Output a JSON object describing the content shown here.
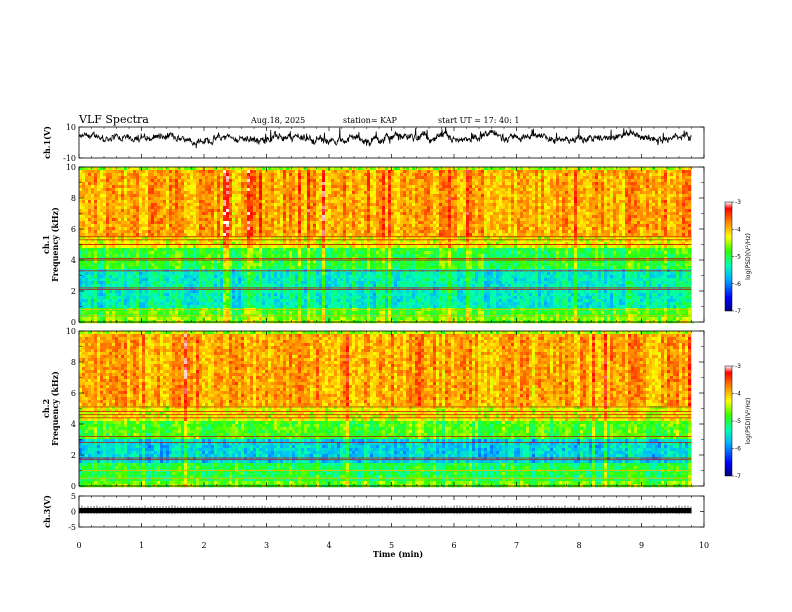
{
  "header": {
    "title": "VLF Spectra",
    "date": "Aug.18, 2025",
    "station": "station= KAP",
    "start": "start  UT  =   17: 40: 1"
  },
  "chart_data": [
    {
      "type": "line",
      "id": "ch1-waveform",
      "ylabel": "ch.1(V)",
      "ylim": [
        -10,
        10
      ],
      "ytick_labels": [
        "10",
        "-10"
      ],
      "xlim": [
        0,
        10
      ],
      "data_extent_min": 9.8,
      "mean": 3,
      "amplitude": 3
    },
    {
      "type": "heatmap",
      "id": "ch1-spectrogram",
      "ylabel": "ch.1 Frequency  (kHz)",
      "ylim": [
        0,
        10
      ],
      "yticks": [
        0,
        2,
        4,
        6,
        8,
        10
      ],
      "xlim": [
        0,
        10
      ],
      "bands_khz": [
        {
          "from": 0,
          "to": 0.5,
          "level": -4.6
        },
        {
          "from": 0.5,
          "to": 1.0,
          "level": -4.8
        },
        {
          "from": 1.0,
          "to": 3.6,
          "level": -5.4
        },
        {
          "from": 3.6,
          "to": 4.8,
          "level": -4.9
        },
        {
          "from": 4.8,
          "to": 5.6,
          "level": -4.3
        },
        {
          "from": 5.6,
          "to": 10,
          "level": -3.9
        }
      ],
      "lines_khz": [
        0.4,
        0.8,
        2.1,
        2.2,
        3.3,
        4.0,
        4.1,
        5.0,
        5.3,
        5.5
      ]
    },
    {
      "type": "heatmap",
      "id": "ch2-spectrogram",
      "ylabel": "ch.2 Frequency  (kHz)",
      "ylim": [
        0,
        10
      ],
      "yticks": [
        0,
        2,
        4,
        6,
        8,
        10
      ],
      "xlim": [
        0,
        10
      ],
      "bands_khz": [
        {
          "from": 0,
          "to": 0.5,
          "level": -4.7
        },
        {
          "from": 0.5,
          "to": 1.6,
          "level": -5.0
        },
        {
          "from": 1.6,
          "to": 3.1,
          "level": -5.6
        },
        {
          "from": 3.1,
          "to": 4.2,
          "level": -4.8
        },
        {
          "from": 4.2,
          "to": 5.2,
          "level": -4.3
        },
        {
          "from": 5.2,
          "to": 10,
          "level": -3.9
        }
      ],
      "lines_khz": [
        0.5,
        1.0,
        1.7,
        1.8,
        2.8,
        3.2,
        4.4,
        4.6,
        4.8,
        5.1
      ]
    },
    {
      "type": "line",
      "id": "ch3-waveform",
      "ylabel": "ch.3(V)",
      "ylim": [
        -5,
        5
      ],
      "ytick_labels": [
        "5",
        "0",
        "-5"
      ],
      "xlim": [
        0,
        10
      ],
      "data_extent_min": 9.8,
      "mean": 0,
      "amplitude": 0.4
    }
  ],
  "colorbar": {
    "label": "log(PSD)(V²/Hz)",
    "range": [
      -7,
      -3
    ],
    "tick_labels": [
      "-3",
      "-4",
      "-5",
      "-6",
      "-7"
    ]
  },
  "xaxis": {
    "label": "Time  (min)",
    "ticks": [
      "0",
      "1",
      "2",
      "3",
      "4",
      "5",
      "6",
      "7",
      "8",
      "9",
      "10"
    ]
  }
}
